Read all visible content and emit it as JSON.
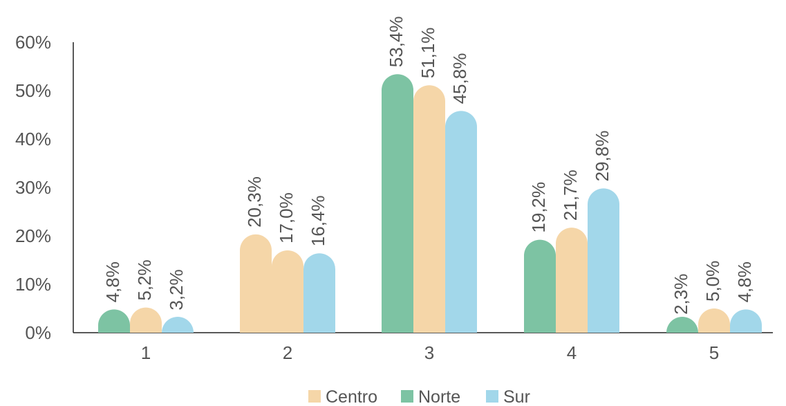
{
  "chart_data": {
    "type": "bar",
    "categories": [
      "1",
      "2",
      "3",
      "4",
      "5"
    ],
    "ylim": [
      0,
      60
    ],
    "yticks": [
      "0%",
      "10%",
      "20%",
      "30%",
      "40%",
      "50%",
      "60%"
    ],
    "legend_position": "bottom",
    "grid": false,
    "series": [
      {
        "name": "Norte",
        "color": "#7dc3a3",
        "values": [
          4.8,
          null,
          53.4,
          19.2,
          2.3
        ],
        "labels": [
          "4,8%",
          "",
          "53,4%",
          "19,2%",
          "2,3%"
        ]
      },
      {
        "name": "Centro",
        "color": "#f5d6a8",
        "values": [
          5.2,
          20.3,
          51.1,
          21.7,
          5.0
        ],
        "labels": [
          "5,2%",
          "20,3%",
          "51,1%",
          "21,7%",
          "5,0%"
        ]
      },
      {
        "name": "Sur",
        "color": "#a2d7ea",
        "values": [
          3.2,
          16.4,
          45.8,
          29.8,
          4.8
        ],
        "labels": [
          "3,2%",
          "16,4%",
          "45,8%",
          "29,8%",
          "4,8%"
        ]
      }
    ],
    "extra_bars": [
      {
        "category": "2",
        "color": "#f5d6a8",
        "value": 17.0,
        "label": "17,0%"
      }
    ],
    "legend": [
      {
        "name": "Centro",
        "color": "#f5d6a8"
      },
      {
        "name": "Norte",
        "color": "#7dc3a3"
      },
      {
        "name": "Sur",
        "color": "#a2d7ea"
      }
    ]
  }
}
